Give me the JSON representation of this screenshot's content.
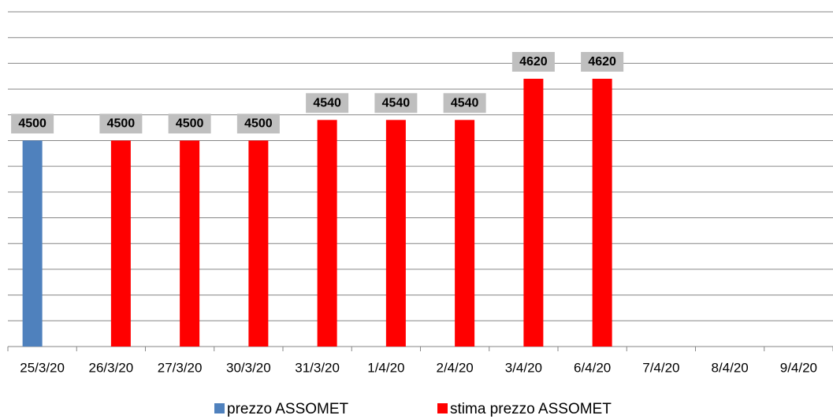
{
  "chart_data": {
    "type": "bar",
    "categories": [
      "25/3/20",
      "26/3/20",
      "27/3/20",
      "30/3/20",
      "31/3/20",
      "1/4/20",
      "2/4/20",
      "3/4/20",
      "6/4/20",
      "7/4/20",
      "8/4/20",
      "9/4/20"
    ],
    "series": [
      {
        "name": "prezzo ASSOMET",
        "color": "#4f81bd",
        "values": [
          4500,
          null,
          null,
          null,
          null,
          null,
          null,
          null,
          null,
          null,
          null,
          null
        ]
      },
      {
        "name": "stima prezzo ASSOMET",
        "color": "#ff0000",
        "values": [
          null,
          4500,
          4500,
          4500,
          4540,
          4540,
          4540,
          4620,
          4620,
          null,
          null,
          null
        ]
      }
    ],
    "ylim": [
      4100,
      4750
    ],
    "yticks": [
      4100,
      4150,
      4200,
      4250,
      4300,
      4350,
      4400,
      4450,
      4500,
      4550,
      4600,
      4650,
      4700,
      4750
    ],
    "grid": true,
    "legend": "bottom"
  }
}
